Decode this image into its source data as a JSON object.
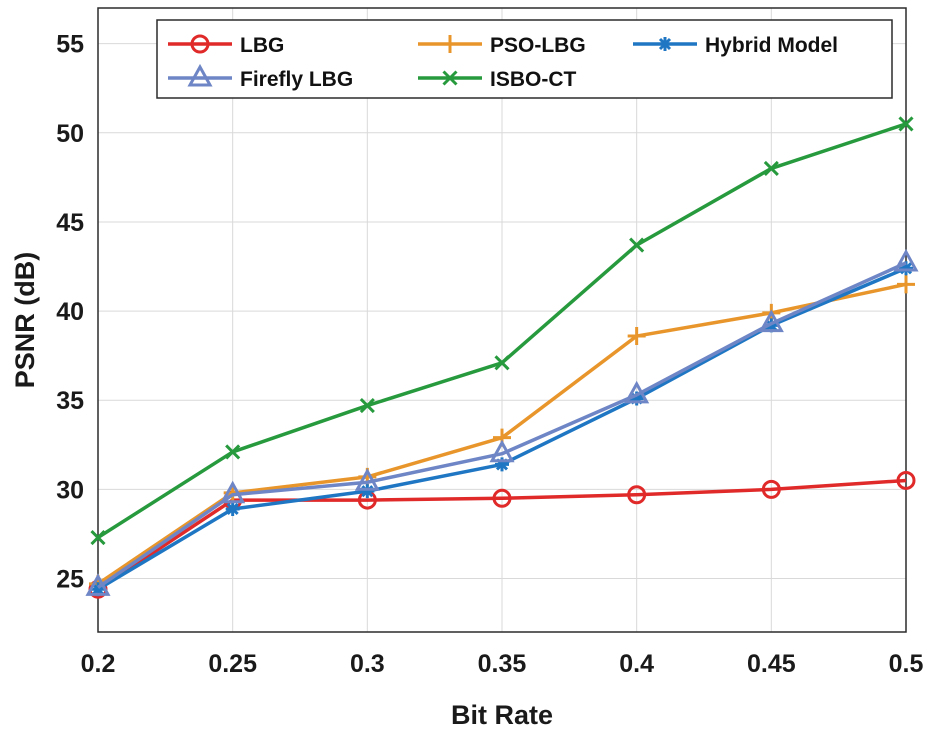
{
  "chart_data": {
    "type": "line",
    "title": "",
    "xlabel": "Bit Rate",
    "ylabel": "PSNR (dB)",
    "x": [
      0.2,
      0.25,
      0.3,
      0.35,
      0.4,
      0.45,
      0.5
    ],
    "x_tick_labels": [
      "0.2",
      "0.25",
      "0.3",
      "0.35",
      "0.4",
      "0.45",
      "0.5"
    ],
    "xlim": [
      0.2,
      0.5
    ],
    "ylim": [
      22,
      57
    ],
    "y_ticks": [
      25,
      30,
      35,
      40,
      45,
      50,
      55
    ],
    "y_tick_labels": [
      "25",
      "30",
      "35",
      "40",
      "45",
      "50",
      "55"
    ],
    "grid": true,
    "legend_position": "top",
    "series": [
      {
        "name": "LBG",
        "color": "#e02a2a",
        "marker": "circle",
        "values": [
          24.4,
          29.4,
          29.4,
          29.5,
          29.7,
          30.0,
          30.5
        ]
      },
      {
        "name": "PSO-LBG",
        "color": "#e8962b",
        "marker": "plus",
        "values": [
          24.7,
          29.8,
          30.7,
          32.9,
          38.6,
          39.9,
          41.5
        ]
      },
      {
        "name": "Hybrid Model",
        "color": "#1f77c4",
        "marker": "asterisk",
        "values": [
          24.4,
          28.9,
          29.9,
          31.4,
          35.1,
          39.2,
          42.4
        ]
      },
      {
        "name": "Firefly LBG",
        "color": "#6f86c6",
        "marker": "triangle",
        "values": [
          24.5,
          29.7,
          30.4,
          32.0,
          35.3,
          39.3,
          42.7
        ]
      },
      {
        "name": "ISBO-CT",
        "color": "#279a3e",
        "marker": "x",
        "values": [
          27.3,
          32.1,
          34.7,
          37.1,
          43.7,
          48.0,
          50.5
        ]
      }
    ]
  }
}
